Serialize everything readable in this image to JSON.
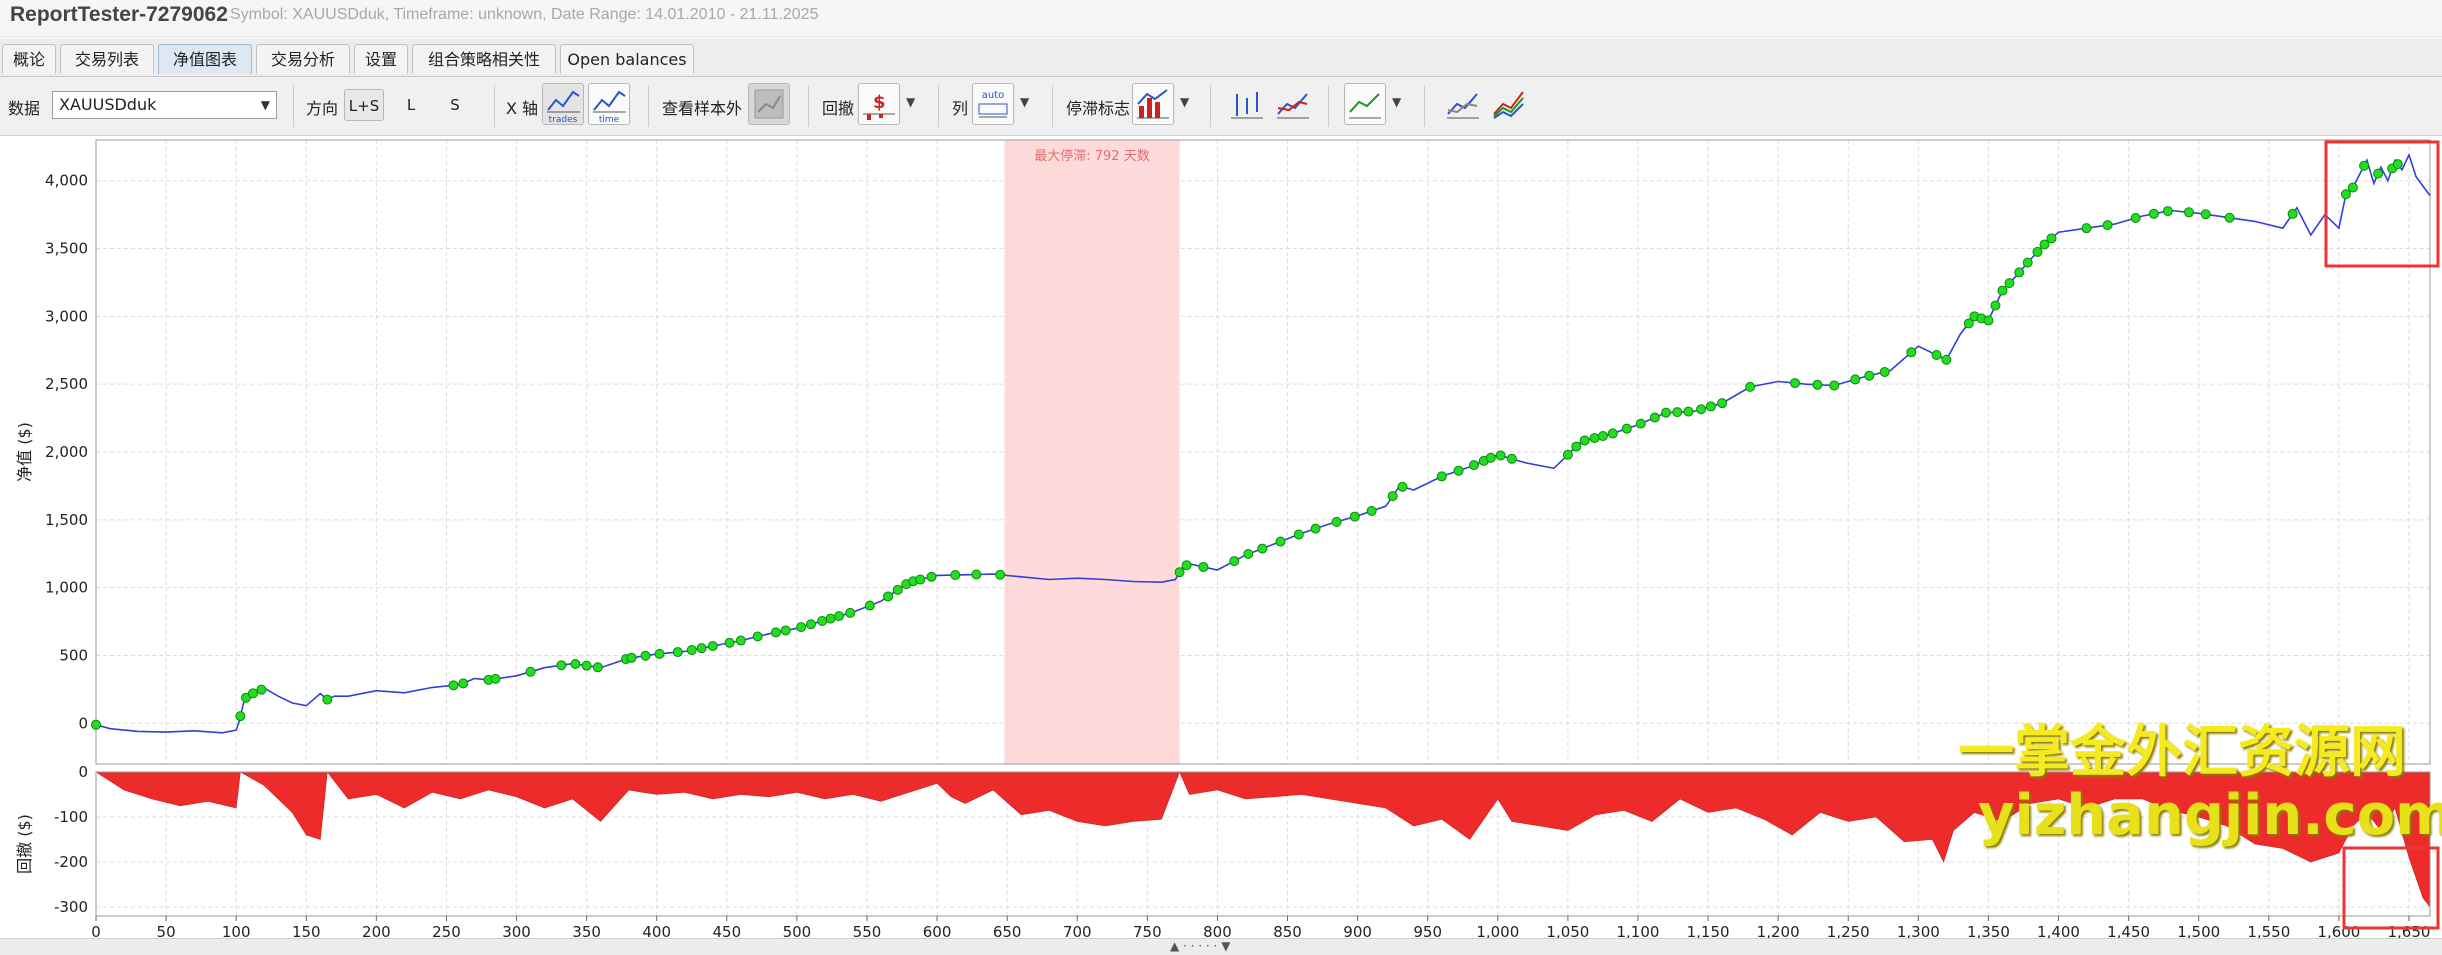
{
  "window": {
    "title": "ReportTester-7279062",
    "subtitle": "Symbol: XAUUSDduk, Timeframe: unknown, Date Range: 14.01.2010 - 21.11.2025"
  },
  "tabs": [
    "概论",
    "交易列表",
    "净值图表",
    "交易分析",
    "设置",
    "组合策略相关性",
    "Open balances"
  ],
  "active_tab": 2,
  "toolbar": {
    "data_label": "数据",
    "data_value": "XAUUSDduk",
    "direction_label": "方向",
    "direction_options": [
      "L+S",
      "L",
      "S"
    ],
    "xaxis_label": "X 轴",
    "xaxis_trades": "trades",
    "xaxis_time": "time",
    "oos_label": "查看样本外",
    "drawdown_label": "回撤",
    "columns_label": "列",
    "columns_auto": "auto",
    "stagnation_label": "停滞标志"
  },
  "colors": {
    "equity_line": "#3040d8",
    "new_high_marker": "#22dd22",
    "drawdown_fill": "#ee2b2b",
    "stagnation_band": "#ffd4d4",
    "highlight_box": "#ee3333",
    "watermark": "#f5ea20"
  },
  "watermark": {
    "line1": "一掌金外汇资源网",
    "line2": "yizhangjin.com"
  },
  "chart_data": [
    {
      "type": "line",
      "ylabel": "净值 ($)",
      "xlim": [
        0,
        1665
      ],
      "ylim": [
        -300,
        4300
      ],
      "yticks": [
        0,
        500,
        1000,
        1500,
        2000,
        2500,
        3000,
        3500,
        4000
      ],
      "ytick_labels": [
        "0",
        "500",
        "1,000",
        "1,500",
        "2,000",
        "2,500",
        "3,000",
        "3,500",
        "4,000"
      ],
      "grid": true,
      "stagnation": {
        "label": "最大停滞: 792 天数",
        "x_range": [
          648,
          773
        ]
      },
      "series": [
        {
          "x": [
            0,
            10,
            30,
            50,
            70,
            90,
            100,
            102,
            106,
            110,
            115,
            120,
            130,
            140,
            150,
            160,
            165,
            170,
            180,
            200,
            220,
            240,
            260,
            270,
            280,
            300,
            320,
            340,
            360,
            380,
            400,
            420,
            440,
            460,
            480,
            500,
            520,
            540,
            560,
            580,
            600,
            620,
            640,
            660,
            680,
            700,
            720,
            740,
            760,
            770,
            775,
            780,
            800,
            820,
            840,
            860,
            880,
            900,
            920,
            930,
            940,
            960,
            980,
            1000,
            1020,
            1040,
            1060,
            1080,
            1100,
            1120,
            1140,
            1160,
            1180,
            1200,
            1220,
            1240,
            1260,
            1280,
            1300,
            1320,
            1330,
            1340,
            1350,
            1360,
            1370,
            1380,
            1390,
            1400,
            1420,
            1440,
            1460,
            1480,
            1500,
            1520,
            1540,
            1560,
            1570,
            1580,
            1590,
            1600,
            1605,
            1610,
            1615,
            1620,
            1625,
            1630,
            1635,
            1640,
            1645,
            1650,
            1655,
            1660,
            1665
          ],
          "y": [
            -10,
            -40,
            -60,
            -65,
            -55,
            -70,
            -50,
            10,
            180,
            215,
            230,
            260,
            200,
            150,
            130,
            220,
            175,
            200,
            200,
            240,
            225,
            265,
            285,
            330,
            320,
            350,
            410,
            440,
            410,
            480,
            510,
            530,
            570,
            610,
            660,
            700,
            760,
            820,
            900,
            1040,
            1090,
            1095,
            1100,
            1080,
            1060,
            1070,
            1060,
            1045,
            1040,
            1060,
            1150,
            1175,
            1130,
            1240,
            1320,
            1400,
            1470,
            1530,
            1600,
            1750,
            1720,
            1820,
            1890,
            1980,
            1920,
            1880,
            2080,
            2130,
            2200,
            2290,
            2300,
            2360,
            2480,
            2520,
            2500,
            2490,
            2550,
            2600,
            2780,
            2680,
            2870,
            3000,
            2970,
            3190,
            3300,
            3420,
            3530,
            3620,
            3650,
            3680,
            3740,
            3780,
            3760,
            3730,
            3700,
            3650,
            3800,
            3600,
            3750,
            3650,
            3900,
            3950,
            4050,
            4150,
            3980,
            4100,
            4000,
            4150,
            4080,
            4190,
            4030,
            3960,
            3890
          ],
          "new_high_x": [
            0,
            103,
            107,
            112,
            118,
            165,
            255,
            262,
            280,
            285,
            310,
            332,
            342,
            350,
            358,
            378,
            382,
            392,
            402,
            415,
            425,
            432,
            440,
            452,
            460,
            472,
            485,
            492,
            503,
            510,
            518,
            524,
            530,
            538,
            552,
            565,
            572,
            578,
            583,
            588,
            596,
            613,
            628,
            645,
            773,
            778,
            790,
            812,
            822,
            832,
            845,
            858,
            870,
            885,
            898,
            910,
            925,
            932,
            960,
            972,
            983,
            990,
            995,
            1002,
            1010,
            1050,
            1056,
            1062,
            1069,
            1075,
            1082,
            1092,
            1102,
            1112,
            1120,
            1128,
            1136,
            1145,
            1152,
            1160,
            1180,
            1212,
            1228,
            1240,
            1255,
            1265,
            1276,
            1295,
            1313,
            1320,
            1336,
            1340,
            1345,
            1350,
            1355,
            1360,
            1365,
            1372,
            1378,
            1385,
            1390,
            1395,
            1420,
            1435,
            1455,
            1468,
            1478,
            1493,
            1505,
            1522,
            1567,
            1605,
            1610,
            1618,
            1628,
            1638,
            1642
          ]
        }
      ]
    },
    {
      "type": "area",
      "ylabel": "回撤 ($)",
      "xlim": [
        0,
        1665
      ],
      "ylim": [
        -320,
        0
      ],
      "yticks": [
        0,
        -100,
        -200,
        -300
      ],
      "ytick_labels": [
        "0",
        "-100",
        "-200",
        "-300"
      ],
      "xticks": [
        0,
        50,
        100,
        150,
        200,
        250,
        300,
        350,
        400,
        450,
        500,
        550,
        600,
        650,
        700,
        750,
        800,
        850,
        900,
        950,
        1000,
        1050,
        1100,
        1150,
        1200,
        1250,
        1300,
        1350,
        1400,
        1450,
        1500,
        1550,
        1600,
        1650
      ],
      "xtick_labels": [
        "0",
        "50",
        "100",
        "150",
        "200",
        "250",
        "300",
        "350",
        "400",
        "450",
        "500",
        "550",
        "600",
        "650",
        "700",
        "750",
        "800",
        "850",
        "900",
        "950",
        "1,000",
        "1,050",
        "1,100",
        "1,150",
        "1,200",
        "1,250",
        "1,300",
        "1,350",
        "1,400",
        "1,450",
        "1,500",
        "1,550",
        "1,600",
        "1,650"
      ],
      "grid": true,
      "x": [
        0,
        20,
        40,
        60,
        80,
        100,
        103,
        120,
        140,
        150,
        160,
        165,
        180,
        200,
        220,
        240,
        260,
        280,
        300,
        320,
        340,
        360,
        380,
        400,
        420,
        440,
        460,
        480,
        500,
        520,
        540,
        560,
        580,
        600,
        610,
        620,
        640,
        660,
        680,
        700,
        720,
        740,
        760,
        773,
        780,
        800,
        820,
        840,
        860,
        880,
        900,
        920,
        940,
        960,
        980,
        1000,
        1010,
        1030,
        1050,
        1070,
        1090,
        1110,
        1130,
        1150,
        1170,
        1190,
        1210,
        1230,
        1250,
        1270,
        1290,
        1310,
        1318,
        1325,
        1340,
        1360,
        1380,
        1400,
        1420,
        1440,
        1460,
        1480,
        1500,
        1520,
        1540,
        1560,
        1580,
        1600,
        1610,
        1620,
        1630,
        1640,
        1650,
        1660,
        1665
      ],
      "y": [
        0,
        -40,
        -60,
        -75,
        -65,
        -80,
        0,
        -30,
        -90,
        -140,
        -150,
        0,
        -60,
        -50,
        -80,
        -45,
        -60,
        -40,
        -55,
        -80,
        -60,
        -110,
        -40,
        -50,
        -45,
        -60,
        -50,
        -55,
        -45,
        -60,
        -50,
        -65,
        -45,
        -25,
        -55,
        -70,
        -40,
        -95,
        -85,
        -110,
        -120,
        -110,
        -105,
        0,
        -50,
        -40,
        -60,
        -55,
        -50,
        -60,
        -70,
        -80,
        -120,
        -105,
        -150,
        -60,
        -110,
        -120,
        -130,
        -95,
        -85,
        -110,
        -60,
        -90,
        -80,
        -105,
        -140,
        -90,
        -110,
        -100,
        -155,
        -150,
        -200,
        -130,
        -90,
        -110,
        -70,
        -60,
        -80,
        -60,
        -60,
        -85,
        -100,
        -120,
        -160,
        -170,
        -200,
        -180,
        -120,
        -90,
        -130,
        -80,
        -190,
        -280,
        -300
      ]
    }
  ]
}
